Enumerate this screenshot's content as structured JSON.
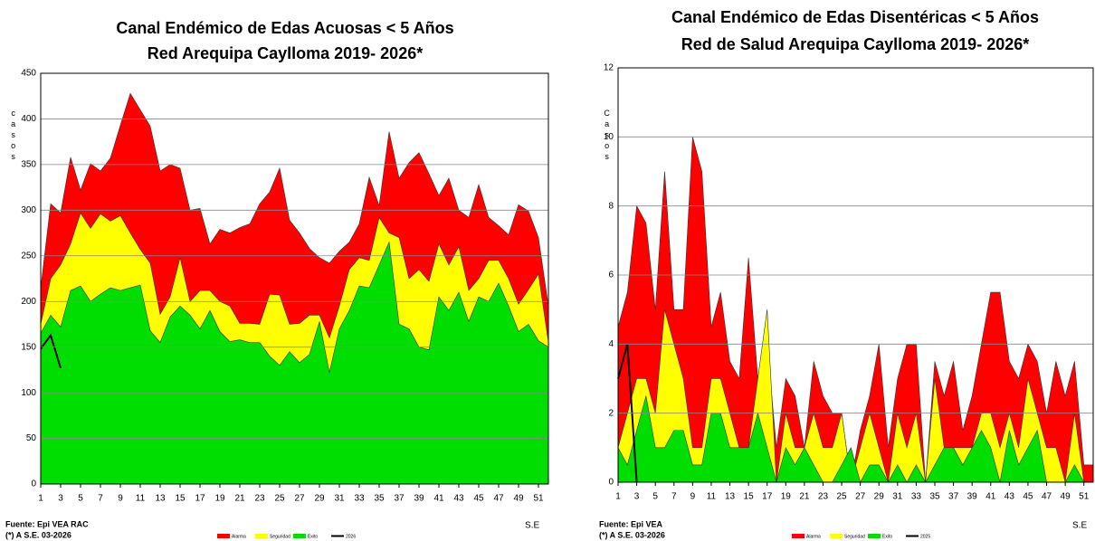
{
  "chart_data": [
    {
      "type": "area",
      "title": "Canal Endémico de Edas Acuosas  < 5 Años",
      "subtitle": "Red Arequipa Caylloma 2019- 2026*",
      "ylabel": "casos",
      "xlabel": "S.E",
      "source": "Fuente: Epi VEA RAC",
      "note": "(*) A S.E. 03-2026",
      "x": [
        1,
        2,
        3,
        4,
        5,
        6,
        7,
        8,
        9,
        10,
        11,
        12,
        13,
        14,
        15,
        16,
        17,
        18,
        19,
        20,
        21,
        22,
        23,
        24,
        25,
        26,
        27,
        28,
        29,
        30,
        31,
        32,
        33,
        34,
        35,
        36,
        37,
        38,
        39,
        40,
        41,
        42,
        43,
        44,
        45,
        46,
        47,
        48,
        49,
        50,
        51,
        52
      ],
      "xlim": [
        1,
        52
      ],
      "xticks": [
        1,
        3,
        5,
        7,
        9,
        11,
        13,
        15,
        17,
        19,
        21,
        23,
        25,
        27,
        29,
        31,
        33,
        35,
        37,
        39,
        41,
        43,
        45,
        47,
        49,
        51
      ],
      "ylim": [
        0,
        450
      ],
      "yticks": [
        0,
        50,
        100,
        150,
        200,
        250,
        300,
        350,
        400,
        450
      ],
      "grid": true,
      "series": [
        {
          "name": "Alarma",
          "type": "area",
          "color": "#ff0000",
          "values": [
            215,
            307,
            297,
            358,
            322,
            351,
            343,
            357,
            393,
            428,
            410,
            392,
            343,
            350,
            346,
            300,
            302,
            263,
            279,
            275,
            281,
            285,
            307,
            320,
            346,
            289,
            275,
            258,
            248,
            242,
            255,
            265,
            285,
            336,
            305,
            386,
            335,
            352,
            363,
            340,
            316,
            335,
            300,
            292,
            328,
            292,
            283,
            273,
            306,
            299,
            270,
            195
          ]
        },
        {
          "name": "Seguridad",
          "type": "area",
          "color": "#ffff00",
          "values": [
            175,
            225,
            240,
            263,
            297,
            280,
            296,
            288,
            294,
            275,
            257,
            242,
            186,
            205,
            248,
            200,
            212,
            212,
            200,
            195,
            176,
            176,
            175,
            208,
            207,
            175,
            176,
            185,
            185,
            160,
            195,
            235,
            248,
            245,
            292,
            275,
            270,
            225,
            235,
            222,
            263,
            240,
            260,
            212,
            225,
            245,
            245,
            225,
            197,
            213,
            230,
            155
          ]
        },
        {
          "name": "Exito",
          "type": "area",
          "color": "#00dd00",
          "values": [
            165,
            185,
            172,
            212,
            217,
            200,
            208,
            215,
            212,
            215,
            218,
            168,
            155,
            183,
            195,
            185,
            170,
            190,
            167,
            156,
            158,
            155,
            155,
            140,
            130,
            145,
            133,
            142,
            178,
            122,
            170,
            190,
            217,
            215,
            240,
            265,
            175,
            170,
            150,
            147,
            205,
            190,
            210,
            178,
            205,
            200,
            220,
            195,
            167,
            175,
            157,
            150
          ]
        },
        {
          "name": "2026",
          "type": "line",
          "color": "#000000",
          "values": [
            148,
            163,
            127,
            null,
            null,
            null,
            null,
            null,
            null,
            null,
            null,
            null,
            null,
            null,
            null,
            null,
            null,
            null,
            null,
            null,
            null,
            null,
            null,
            null,
            null,
            null,
            null,
            null,
            null,
            null,
            null,
            null,
            null,
            null,
            null,
            null,
            null,
            null,
            null,
            null,
            null,
            null,
            null,
            null,
            null,
            null,
            null,
            null,
            null,
            null,
            null,
            null
          ]
        }
      ]
    },
    {
      "type": "area",
      "title": "Canal Endémico de Edas Disentéricas  < 5 Años",
      "subtitle": "Red  de Salud Arequipa Caylloma 2019- 2026*",
      "ylabel": "Casos",
      "xlabel": "S.E",
      "source": "Fuente: Epi VEA",
      "note": "(*) A S.E. 03-2026",
      "x": [
        1,
        2,
        3,
        4,
        5,
        6,
        7,
        8,
        9,
        10,
        11,
        12,
        13,
        14,
        15,
        16,
        17,
        18,
        19,
        20,
        21,
        22,
        23,
        24,
        25,
        26,
        27,
        28,
        29,
        30,
        31,
        32,
        33,
        34,
        35,
        36,
        37,
        38,
        39,
        40,
        41,
        42,
        43,
        44,
        45,
        46,
        47,
        48,
        49,
        50,
        51,
        52
      ],
      "xlim": [
        1,
        52
      ],
      "xticks": [
        1,
        3,
        5,
        7,
        9,
        11,
        13,
        15,
        17,
        19,
        21,
        23,
        25,
        27,
        29,
        31,
        33,
        35,
        37,
        39,
        41,
        43,
        45,
        47,
        49,
        51
      ],
      "ylim": [
        0,
        12
      ],
      "yticks": [
        0,
        2,
        4,
        6,
        8,
        10,
        12
      ],
      "grid": true,
      "series": [
        {
          "name": "Alarma",
          "type": "area",
          "color": "#ff0000",
          "values": [
            4.5,
            5.5,
            8,
            7.5,
            5,
            9,
            5,
            5,
            10,
            9,
            4.5,
            5.5,
            3.5,
            3,
            6.5,
            3,
            4,
            1,
            3,
            2.5,
            1,
            3.5,
            2.5,
            2,
            2,
            0,
            1.5,
            2.5,
            4,
            1,
            3,
            4,
            4,
            0,
            3.5,
            2.5,
            3.5,
            1.5,
            2.5,
            4,
            5.5,
            5.5,
            3.5,
            3,
            4,
            3.5,
            2,
            3.5,
            2.5,
            3.5,
            0.5,
            0.5
          ]
        },
        {
          "name": "Seguridad",
          "type": "area",
          "color": "#ffff00",
          "values": [
            1,
            2,
            3,
            3,
            2,
            5,
            4,
            3,
            1,
            1,
            3,
            3,
            2,
            1,
            1,
            3,
            5,
            0,
            2,
            1,
            1,
            2,
            1,
            1,
            2,
            0,
            1,
            2,
            1,
            0,
            2,
            1,
            2,
            0,
            3,
            1,
            1,
            1,
            1,
            2,
            2,
            1,
            2,
            1,
            3,
            2,
            1,
            1,
            0,
            2,
            0,
            0
          ]
        },
        {
          "name": "Exito",
          "type": "area",
          "color": "#00dd00",
          "values": [
            1,
            0.5,
            1.5,
            2.5,
            1,
            1,
            1.5,
            1.5,
            0.5,
            0.5,
            2,
            2,
            1,
            1,
            1,
            2,
            1,
            0,
            1,
            0.5,
            1,
            0.5,
            0,
            0,
            0.5,
            1,
            0,
            0.5,
            0.5,
            0,
            0.5,
            0,
            0.5,
            0,
            0.5,
            1,
            1,
            0.5,
            1,
            1.5,
            1,
            0,
            1.5,
            0.5,
            1,
            1.5,
            0,
            0,
            0,
            0.5,
            0,
            0
          ]
        },
        {
          "name": "2025",
          "type": "line",
          "color": "#000000",
          "values": [
            3,
            4,
            0,
            null,
            null,
            null,
            null,
            null,
            null,
            null,
            null,
            null,
            null,
            null,
            null,
            null,
            null,
            null,
            null,
            null,
            null,
            null,
            null,
            null,
            null,
            null,
            null,
            null,
            null,
            null,
            null,
            null,
            null,
            null,
            null,
            null,
            null,
            null,
            null,
            null,
            null,
            null,
            null,
            null,
            null,
            null,
            null,
            null,
            null,
            null,
            null,
            null
          ]
        }
      ]
    }
  ]
}
